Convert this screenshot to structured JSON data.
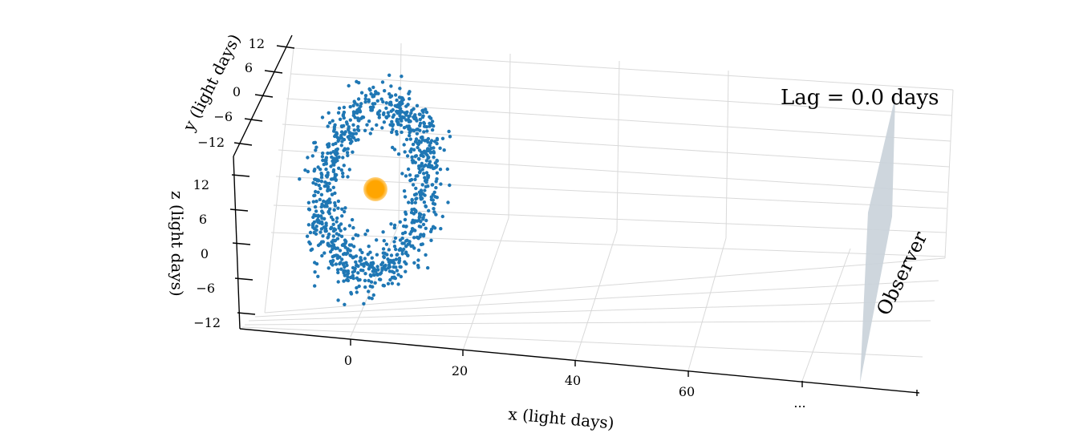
{
  "chart_data": {
    "type": "scatter",
    "projection": "3d",
    "annotation": "Lag = 0.0 days",
    "observer_label": "Observer",
    "axes": {
      "x": {
        "label": "x (light days)",
        "ticks": [
          "0",
          "20",
          "40",
          "60",
          "..."
        ]
      },
      "y": {
        "label": "y (light days)",
        "ticks": [
          "12",
          "6",
          "0",
          "−6",
          "−12"
        ]
      },
      "z": {
        "label": "z (light days)",
        "ticks": [
          "12",
          "6",
          "0",
          "−6",
          "−12"
        ]
      }
    },
    "series": [
      {
        "marker": "point-cloud-ring",
        "color": "#1f77b4",
        "ring_radius_approx": 10,
        "center": [
          0,
          0,
          0
        ]
      },
      {
        "marker": "central-source",
        "color": "#ffa500",
        "position": [
          0,
          0,
          0
        ]
      },
      {
        "marker": "observer-plane",
        "color": "#c9d1d9"
      }
    ],
    "grid": true
  }
}
